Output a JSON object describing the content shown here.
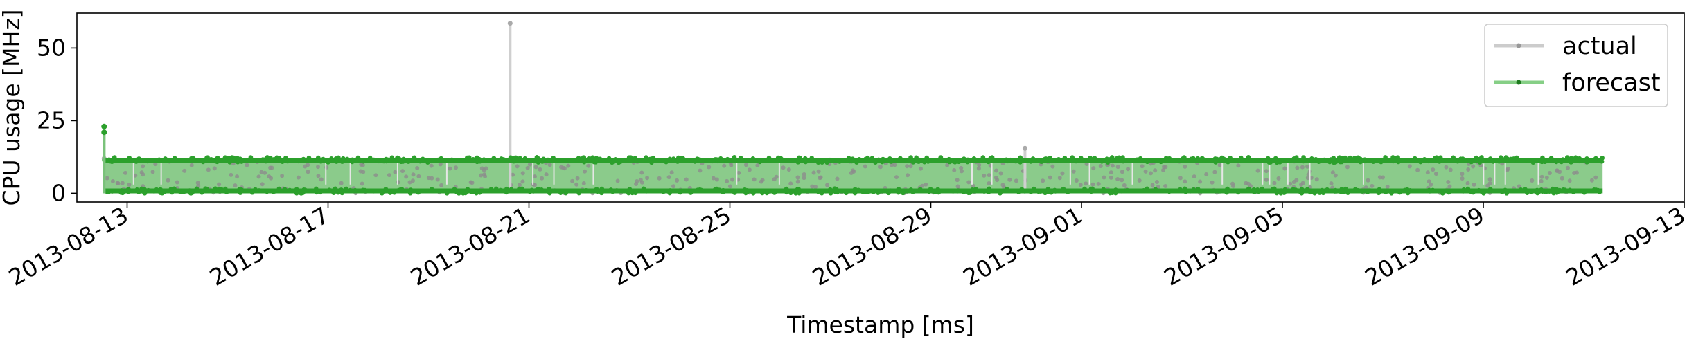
{
  "chart_data": {
    "type": "line",
    "title": "",
    "xlabel": "Timestamp [ms]",
    "ylabel": "CPU usage [MHz]",
    "x_ticks": [
      "2013-08-13",
      "2013-08-17",
      "2013-08-21",
      "2013-08-25",
      "2013-08-29",
      "2013-09-01",
      "2013-09-05",
      "2013-09-09",
      "2013-09-13"
    ],
    "y_ticks": [
      "0",
      "25",
      "50"
    ],
    "xlim": [
      "2013-08-12",
      "2013-09-13"
    ],
    "ylim": [
      -3,
      62
    ],
    "x_range_data": [
      "2013-08-12T13:00",
      "2013-09-11T09:00"
    ],
    "grid": false,
    "legend_position": "top-right",
    "series": [
      {
        "name": "actual",
        "color": "#bfbfbf",
        "approx_band": [
          0,
          12
        ],
        "notable_points": [
          {
            "x": "2013-08-20T15:00",
            "y": 58.5
          },
          {
            "x": "2013-08-30T21:00",
            "y": 15.5
          },
          {
            "x": "2013-08-12T13:00",
            "y": 12
          }
        ]
      },
      {
        "name": "forecast",
        "color": "#2ca02c",
        "approx_band": [
          0,
          12
        ],
        "notable_points": [
          {
            "x": "2013-08-12T13:00",
            "y": 23
          },
          {
            "x": "2013-08-12T13:00",
            "y": 21
          }
        ]
      }
    ]
  }
}
